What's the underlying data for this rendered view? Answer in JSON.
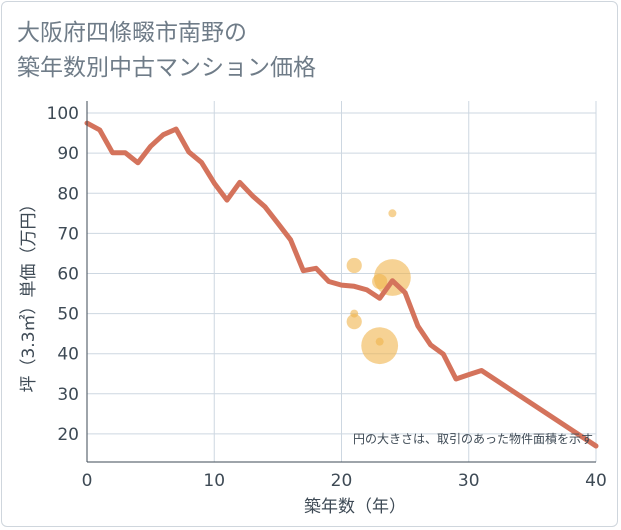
{
  "title_line1": "大阪府四條畷市南野の",
  "title_line2": "築年数別中古マンション価格",
  "chart_data": {
    "type": "line",
    "xlabel": "築年数（年）",
    "ylabel": "坪（3.3㎡）単価（万円）",
    "xlim": [
      0,
      40
    ],
    "ylim": [
      13,
      103
    ],
    "x_ticks": [
      0,
      10,
      20,
      30,
      40
    ],
    "y_ticks": [
      20,
      30,
      40,
      50,
      60,
      70,
      80,
      90,
      100
    ],
    "grid": true,
    "note": "円の大きさは、取引のあった物件面積を示す",
    "colors": {
      "line": "#d4735c",
      "bubble": "#f0b44c",
      "grid": "#cdd7e1",
      "axis": "#3e4a55"
    },
    "series": [
      {
        "type": "line",
        "x": [
          0,
          1,
          2,
          3,
          4,
          5,
          6,
          7,
          8,
          9,
          10,
          11,
          12,
          13,
          14,
          15,
          16,
          17,
          18,
          19,
          20,
          21,
          22,
          23,
          24,
          25,
          26,
          27,
          28,
          29,
          30,
          31,
          40
        ],
        "y": [
          97.5,
          95.8,
          90.1,
          90.1,
          87.6,
          91.7,
          94.6,
          96.0,
          90.3,
          87.7,
          82.5,
          78.3,
          82.7,
          79.4,
          76.6,
          72.5,
          68.4,
          60.7,
          61.3,
          58.0,
          57.1,
          56.8,
          55.9,
          53.8,
          58.2,
          55.2,
          46.9,
          42.2,
          39.9,
          33.7,
          34.8,
          35.8,
          17.0
        ]
      },
      {
        "type": "scatter",
        "points": [
          {
            "x": 21,
            "y": 62,
            "size": 2
          },
          {
            "x": 21,
            "y": 50,
            "size": 1
          },
          {
            "x": 21,
            "y": 48,
            "size": 2
          },
          {
            "x": 23,
            "y": 58,
            "size": 2
          },
          {
            "x": 23,
            "y": 43,
            "size": 1
          },
          {
            "x": 23,
            "y": 42,
            "size": 5
          },
          {
            "x": 24,
            "y": 75,
            "size": 1
          },
          {
            "x": 24,
            "y": 59,
            "size": 5
          }
        ]
      }
    ]
  }
}
